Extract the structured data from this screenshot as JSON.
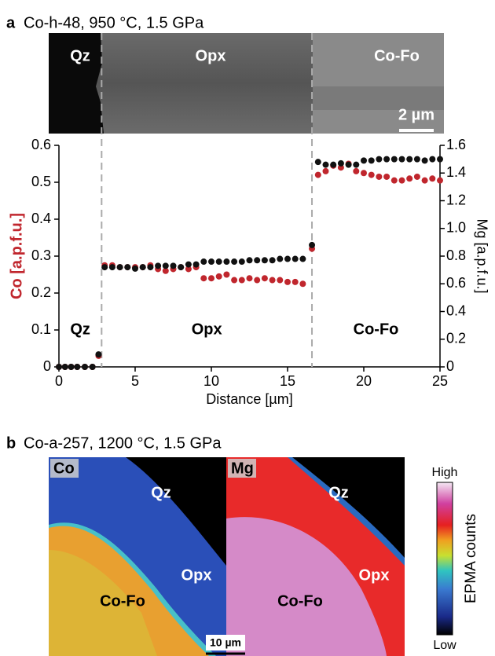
{
  "panel_a": {
    "letter": "a",
    "title": "Co-h-48, 950 °C, 1.5 GPa",
    "image_labels": [
      "Qz",
      "Opx",
      "Co-Fo"
    ],
    "scale_bar": "2 µm"
  },
  "chart_data": {
    "type": "scatter",
    "xlabel": "Distance [µm]",
    "ylabel": "Co [a.p.f.u.]",
    "y2label": "Mg [a.p.f.u.]",
    "x": [
      0,
      0.4,
      0.8,
      1.2,
      1.7,
      2.2,
      2.6,
      3,
      3.5,
      4,
      4.5,
      5,
      5.5,
      6,
      6.5,
      7,
      7.5,
      8,
      8.5,
      9,
      9.5,
      10,
      10.5,
      11,
      11.5,
      12,
      12.5,
      13,
      13.5,
      14,
      14.5,
      15,
      15.5,
      16,
      16.6,
      17,
      17.5,
      18,
      18.5,
      19,
      19.5,
      20,
      20.5,
      21,
      21.5,
      22,
      22.5,
      23,
      23.5,
      24,
      24.5,
      25
    ],
    "series": [
      {
        "color": "#c0262d",
        "values": [
          0,
          0,
          0,
          0,
          0,
          0,
          0.03,
          0.275,
          0.275,
          0.27,
          0.27,
          0.27,
          0.27,
          0.275,
          0.265,
          0.26,
          0.265,
          0.27,
          0.265,
          0.27,
          0.24,
          0.24,
          0.245,
          0.25,
          0.235,
          0.235,
          0.24,
          0.235,
          0.24,
          0.235,
          0.235,
          0.23,
          0.23,
          0.225,
          0.32,
          0.52,
          0.53,
          0.545,
          0.54,
          0.55,
          0.53,
          0.525,
          0.52,
          0.515,
          0.515,
          0.505,
          0.505,
          0.51,
          0.515,
          0.505,
          0.51,
          0.505
        ]
      },
      {
        "color": "#111111",
        "axis": "y2",
        "values": [
          0,
          0,
          0,
          0,
          0,
          0,
          0.09,
          0.72,
          0.72,
          0.72,
          0.72,
          0.71,
          0.72,
          0.72,
          0.73,
          0.73,
          0.73,
          0.72,
          0.74,
          0.74,
          0.76,
          0.76,
          0.76,
          0.76,
          0.76,
          0.76,
          0.77,
          0.77,
          0.77,
          0.77,
          0.78,
          0.78,
          0.78,
          0.78,
          0.88,
          1.48,
          1.46,
          1.46,
          1.47,
          1.46,
          1.46,
          1.49,
          1.49,
          1.5,
          1.5,
          1.5,
          1.5,
          1.5,
          1.5,
          1.49,
          1.5,
          1.5
        ]
      }
    ],
    "xlim": [
      0,
      25
    ],
    "xticks": [
      0,
      5,
      10,
      15,
      20,
      25
    ],
    "ylim": [
      0,
      0.6
    ],
    "yticks": [
      0,
      0.1,
      0.2,
      0.3,
      0.4,
      0.5,
      0.6
    ],
    "y2lim": [
      0,
      1.6
    ],
    "y2ticks": [
      0,
      0.2,
      0.4,
      0.6,
      0.8,
      {
        "value": 1,
        "label": "1.0"
      },
      1.2,
      1.4,
      1.6
    ],
    "boundaries": [
      2.8,
      16.6
    ],
    "region_labels": [
      "Qz",
      "Opx",
      "Co-Fo"
    ]
  },
  "panel_b": {
    "letter": "b",
    "title": "Co-a-257, 1200 °C, 1.5 GPa",
    "maps": [
      {
        "element": "Co",
        "labels": [
          "Qz",
          "Opx",
          "Co-Fo"
        ]
      },
      {
        "element": "Mg",
        "labels": [
          "Qz",
          "Opx",
          "Co-Fo"
        ]
      }
    ],
    "scale_bar": "10 µm",
    "colorbar": {
      "high": "High",
      "low": "Low",
      "label": "EPMA counts"
    }
  }
}
